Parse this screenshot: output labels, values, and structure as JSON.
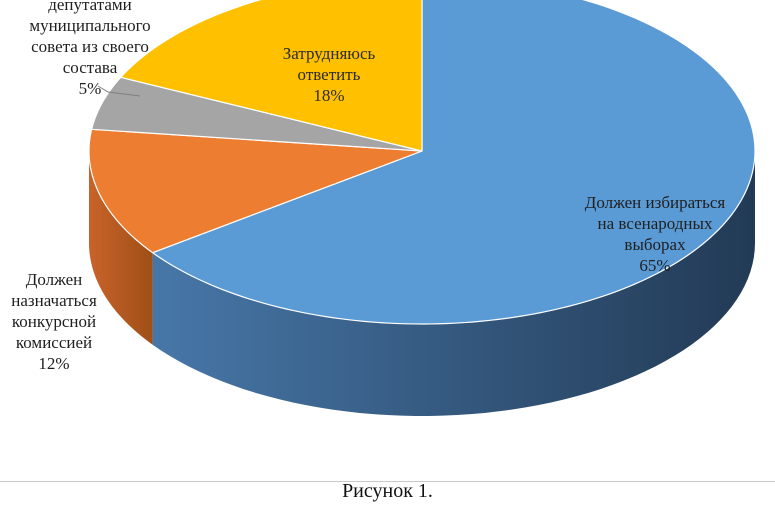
{
  "caption": "Рисунок 1.",
  "chart_data": {
    "type": "pie",
    "title": "",
    "three_d": true,
    "start_angle_deg": 0,
    "direction": "clockwise",
    "slices": [
      {
        "label_lines": [
          "Должен избираться",
          "на всенародных",
          "выборах"
        ],
        "pct_text": "65%",
        "value": 65,
        "color": "#5b9bd5",
        "side_dark": "#223a55",
        "side_light": "#4777a8"
      },
      {
        "label_lines": [
          "Должен",
          "назначаться",
          "конкурсной",
          "комиссией"
        ],
        "pct_text": "12%",
        "value": 12,
        "color": "#ed7d31",
        "side_dark": "#9f4f17",
        "side_light": "#c8632a"
      },
      {
        "label_lines": [
          "депутатами",
          "муниципального",
          "совета из своего",
          "состава"
        ],
        "pct_text": "5%",
        "value": 5,
        "color": "#a5a5a5",
        "side_dark": "#6e6e6e",
        "side_light": "#8a8a8a"
      },
      {
        "label_lines": [
          "Затрудняюсь",
          "ответить"
        ],
        "pct_text": "18%",
        "value": 18,
        "color": "#ffc000",
        "side_dark": "#a37c00",
        "side_light": "#cc9a00"
      }
    ]
  }
}
